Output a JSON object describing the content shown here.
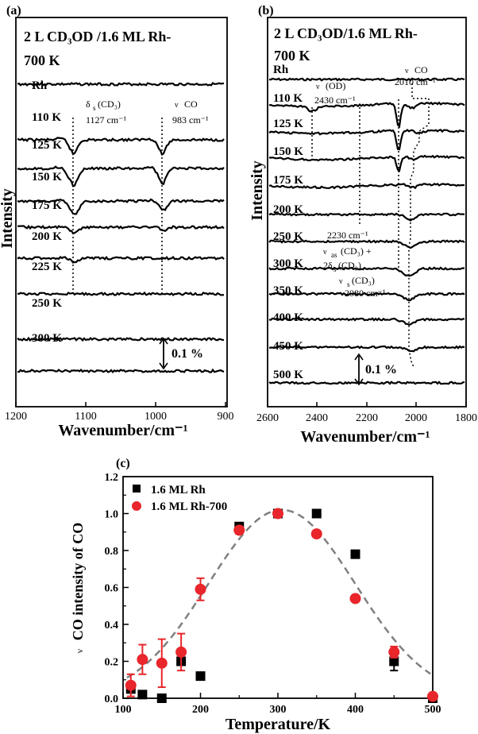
{
  "figure": {
    "panels": [
      "(a)",
      "(b)",
      "(c)"
    ]
  },
  "panel_a": {
    "label": "(a)",
    "title_line1": "2 L CD₃OD /1.6 ML Rh-",
    "title_line2": "700 K",
    "ylabel": "Intensity",
    "xlabel": "Wavenumber/cm⁻¹",
    "xticks": [
      "1200",
      "1100",
      "1000",
      "900"
    ],
    "traces": [
      "Rh",
      "110 K",
      "125 K",
      "150 K",
      "175 K",
      "200 K",
      "225 K",
      "250 K",
      "300 K"
    ],
    "annot_cd3_a": "δ",
    "annot_cd3_b": "s",
    "annot_cd3_c": "(CD₃)",
    "annot_cd3_wn": "1127 cm⁻¹",
    "annot_co_nu": "ν",
    "annot_co": "CO",
    "annot_co_wn": "983 cm⁻¹",
    "scalebar": "0.1 %"
  },
  "panel_b": {
    "label": "(b)",
    "title_line1": "2 L CD₃OD/1.6 ML Rh-",
    "title_line2": "700 K",
    "ylabel": "Intensity",
    "xlabel": "Wavenumber/cm⁻¹",
    "xticks": [
      "2600",
      "2400",
      "2200",
      "2000",
      "1800"
    ],
    "traces": [
      "Rh",
      "110 K",
      "125 K",
      "150 K",
      "175 K",
      "200 K",
      "250 K",
      "300 K",
      "350 K",
      "400 K",
      "450 K",
      "500 K"
    ],
    "annot_co_nu": "ν",
    "annot_co": "CO",
    "annot_co_wn": "2010 cm⁻¹",
    "annot_od_nu": "ν",
    "annot_od": "(OD)",
    "annot_od_wn": "2430 cm⁻¹",
    "annot_2230": "2230 cm⁻¹",
    "annot_as_nu": "ν",
    "annot_as_sub": "as",
    "annot_as_rest": "(CD₃) +",
    "annot_2d": "2δ",
    "annot_2d_sub": "s",
    "annot_2d_rest": "(CD₃)",
    "annot_s_nu": "ν",
    "annot_s_sub": "s",
    "annot_s_rest": "(CD₃)",
    "annot_2080": "2080 cm⁻¹",
    "scalebar": "0.1 %"
  },
  "chart_data": {
    "type": "scatter",
    "title": "",
    "panel_label": "(c)",
    "xlabel": "Temperature/K",
    "ylabel_nu": "ν",
    "ylabel": "CO intensity of CO",
    "xlim": [
      100,
      500
    ],
    "ylim": [
      0.0,
      1.2
    ],
    "xticks": [
      100,
      200,
      300,
      400,
      500
    ],
    "yticks": [
      "0.0",
      "0.2",
      "0.4",
      "0.6",
      "0.8",
      "1.0",
      "1.2"
    ],
    "legend_position": "top-left",
    "series": [
      {
        "name": "1.6 ML Rh",
        "color": "#000000",
        "marker": "square",
        "points": [
          {
            "x": 110,
            "y": 0.05,
            "err": 0.0
          },
          {
            "x": 125,
            "y": 0.02,
            "err": 0.0
          },
          {
            "x": 150,
            "y": 0.0,
            "err": 0.0
          },
          {
            "x": 175,
            "y": 0.2,
            "err": 0.0
          },
          {
            "x": 200,
            "y": 0.12,
            "err": 0.0
          },
          {
            "x": 250,
            "y": 0.93,
            "err": 0.0
          },
          {
            "x": 300,
            "y": 1.0,
            "err": 0.0
          },
          {
            "x": 350,
            "y": 1.0,
            "err": 0.0
          },
          {
            "x": 400,
            "y": 0.78,
            "err": 0.02
          },
          {
            "x": 450,
            "y": 0.2,
            "err": 0.05
          },
          {
            "x": 500,
            "y": 0.0,
            "err": 0.0
          }
        ]
      },
      {
        "name": "1.6 ML Rh-700",
        "color": "#e8262b",
        "marker": "circle",
        "points": [
          {
            "x": 110,
            "y": 0.07,
            "err": 0.06
          },
          {
            "x": 125,
            "y": 0.21,
            "err": 0.08
          },
          {
            "x": 150,
            "y": 0.19,
            "err": 0.13
          },
          {
            "x": 175,
            "y": 0.25,
            "err": 0.1
          },
          {
            "x": 200,
            "y": 0.59,
            "err": 0.06
          },
          {
            "x": 250,
            "y": 0.91,
            "err": 0.02
          },
          {
            "x": 300,
            "y": 1.0,
            "err": 0.0
          },
          {
            "x": 350,
            "y": 0.89,
            "err": 0.0
          },
          {
            "x": 400,
            "y": 0.54,
            "err": 0.0
          },
          {
            "x": 450,
            "y": 0.25,
            "err": 0.03
          },
          {
            "x": 500,
            "y": 0.01,
            "err": 0.0
          }
        ]
      }
    ],
    "fit_curve": {
      "style": "dashed",
      "color": "#808080",
      "center": 305,
      "sigma": 95,
      "amplitude": 1.02
    }
  }
}
